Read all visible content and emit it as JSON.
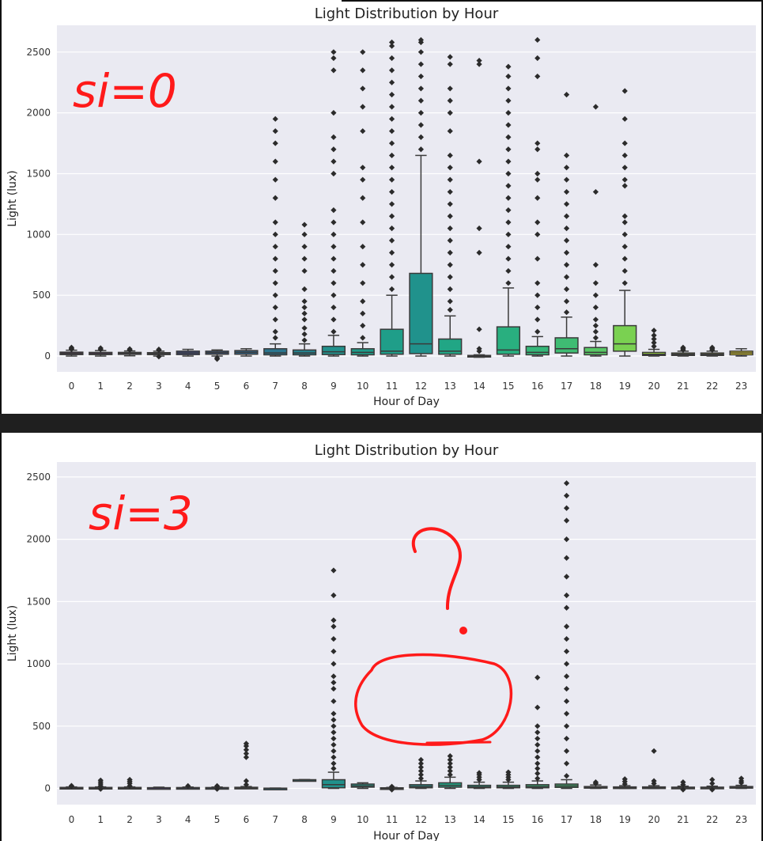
{
  "chart_data": [
    {
      "type": "box",
      "title": "Light Distribution by Hour",
      "xlabel": "Hour of Day",
      "ylabel": "Light (lux)",
      "ylim": [
        -130,
        2720
      ],
      "yticks": [
        0,
        500,
        1000,
        1500,
        2000,
        2500
      ],
      "categories": [
        "0",
        "1",
        "2",
        "3",
        "4",
        "5",
        "6",
        "7",
        "8",
        "9",
        "10",
        "11",
        "12",
        "13",
        "14",
        "15",
        "16",
        "17",
        "18",
        "19",
        "20",
        "21",
        "22",
        "23"
      ],
      "annotation": "si=0",
      "boxes": [
        {
          "hour": "0",
          "q1": 12,
          "median": 22,
          "q3": 32,
          "whisker_low": 0,
          "whisker_high": 48,
          "outliers": [
            55,
            62,
            70
          ],
          "color": "#440154"
        },
        {
          "hour": "1",
          "q1": 12,
          "median": 20,
          "q3": 30,
          "whisker_low": 0,
          "whisker_high": 45,
          "outliers": [
            55,
            65
          ],
          "color": "#46085c"
        },
        {
          "hour": "2",
          "q1": 14,
          "median": 22,
          "q3": 30,
          "whisker_low": 2,
          "whisker_high": 42,
          "outliers": [
            50,
            58
          ],
          "color": "#471365"
        },
        {
          "hour": "3",
          "q1": 12,
          "median": 20,
          "q3": 28,
          "whisker_low": 0,
          "whisker_high": 40,
          "outliers": [
            48,
            55,
            -5
          ],
          "color": "#46307e"
        },
        {
          "hour": "4",
          "q1": 12,
          "median": 25,
          "q3": 40,
          "whisker_low": 0,
          "whisker_high": 55,
          "outliers": [],
          "color": "#3e4a89"
        },
        {
          "hour": "5",
          "q1": 15,
          "median": 28,
          "q3": 40,
          "whisker_low": 0,
          "whisker_high": 50,
          "outliers": [
            -15,
            -25
          ],
          "color": "#37598c"
        },
        {
          "hour": "6",
          "q1": 15,
          "median": 30,
          "q3": 45,
          "whisker_low": 0,
          "whisker_high": 60,
          "outliers": [],
          "color": "#31688e"
        },
        {
          "hour": "7",
          "q1": 10,
          "median": 25,
          "q3": 60,
          "whisker_low": 0,
          "whisker_high": 100,
          "outliers": [
            150,
            200,
            300,
            400,
            500,
            600,
            700,
            800,
            900,
            1000,
            1100,
            1300,
            1450,
            1600,
            1750,
            1850,
            1950
          ],
          "color": "#2b758e"
        },
        {
          "hour": "8",
          "q1": 10,
          "median": 25,
          "q3": 50,
          "whisker_low": 0,
          "whisker_high": 100,
          "outliers": [
            130,
            180,
            230,
            300,
            350,
            400,
            450,
            550,
            700,
            800,
            900,
            1000,
            1080
          ],
          "color": "#26828e"
        },
        {
          "hour": "9",
          "q1": 12,
          "median": 35,
          "q3": 80,
          "whisker_low": 0,
          "whisker_high": 170,
          "outliers": [
            200,
            300,
            400,
            500,
            600,
            700,
            800,
            900,
            1000,
            1100,
            1200,
            1500,
            1600,
            1700,
            1800,
            2000,
            2350,
            2450,
            2500
          ],
          "color": "#21918c"
        },
        {
          "hour": "10",
          "q1": 10,
          "median": 30,
          "q3": 60,
          "whisker_low": 0,
          "whisker_high": 110,
          "outliers": [
            150,
            250,
            350,
            450,
            600,
            750,
            900,
            1100,
            1300,
            1450,
            1550,
            1850,
            2050,
            2200,
            2350,
            2500
          ],
          "color": "#1e9c89"
        },
        {
          "hour": "11",
          "q1": 15,
          "median": 40,
          "q3": 220,
          "whisker_low": 0,
          "whisker_high": 500,
          "outliers": [
            550,
            650,
            750,
            850,
            950,
            1050,
            1150,
            1250,
            1350,
            1450,
            1550,
            1650,
            1750,
            1850,
            1950,
            2050,
            2150,
            2250,
            2350,
            2450,
            2550,
            2580
          ],
          "color": "#1f9e89"
        },
        {
          "hour": "12",
          "q1": 20,
          "median": 100,
          "q3": 680,
          "whisker_low": 0,
          "whisker_high": 1650,
          "outliers": [
            1700,
            1800,
            1900,
            2000,
            2100,
            2200,
            2300,
            2400,
            2500,
            2580,
            2600
          ],
          "color": "#20928c"
        },
        {
          "hour": "13",
          "q1": 15,
          "median": 40,
          "q3": 140,
          "whisker_low": 0,
          "whisker_high": 330,
          "outliers": [
            380,
            450,
            550,
            650,
            750,
            850,
            950,
            1050,
            1150,
            1250,
            1350,
            1450,
            1550,
            1650,
            1850,
            2000,
            2100,
            2200,
            2400,
            2460
          ],
          "color": "#21a685"
        },
        {
          "hour": "14",
          "q1": -5,
          "median": 0,
          "q3": 5,
          "whisker_low": -10,
          "whisker_high": 10,
          "outliers": [
            40,
            60,
            220,
            850,
            1050,
            1600,
            2400,
            2430
          ],
          "color": "#1fa187"
        },
        {
          "hour": "15",
          "q1": 15,
          "median": 50,
          "q3": 240,
          "whisker_low": 0,
          "whisker_high": 560,
          "outliers": [
            600,
            700,
            800,
            900,
            1000,
            1100,
            1200,
            1300,
            1400,
            1500,
            1600,
            1700,
            1800,
            1900,
            2000,
            2100,
            2200,
            2300,
            2380
          ],
          "color": "#29af7f"
        },
        {
          "hour": "16",
          "q1": 10,
          "median": 30,
          "q3": 80,
          "whisker_low": 0,
          "whisker_high": 160,
          "outliers": [
            200,
            300,
            400,
            500,
            600,
            800,
            1000,
            1100,
            1300,
            1450,
            1500,
            1700,
            1750,
            2300,
            2450,
            2600
          ],
          "color": "#35b779"
        },
        {
          "hour": "17",
          "q1": 25,
          "median": 60,
          "q3": 150,
          "whisker_low": 0,
          "whisker_high": 320,
          "outliers": [
            360,
            450,
            550,
            650,
            750,
            850,
            950,
            1050,
            1150,
            1250,
            1350,
            1450,
            1550,
            1650,
            2150
          ],
          "color": "#3fbc73"
        },
        {
          "hour": "18",
          "q1": 10,
          "median": 30,
          "q3": 70,
          "whisker_low": 0,
          "whisker_high": 120,
          "outliers": [
            150,
            200,
            250,
            300,
            400,
            500,
            600,
            750,
            1350,
            2050
          ],
          "color": "#58c765"
        },
        {
          "hour": "19",
          "q1": 40,
          "median": 100,
          "q3": 250,
          "whisker_low": 0,
          "whisker_high": 540,
          "outliers": [
            600,
            700,
            800,
            900,
            1000,
            1100,
            1150,
            1400,
            1450,
            1550,
            1650,
            1750,
            1950,
            2180
          ],
          "color": "#7ad151"
        },
        {
          "hour": "20",
          "q1": 5,
          "median": 15,
          "q3": 30,
          "whisker_low": 0,
          "whisker_high": 55,
          "outliers": [
            80,
            110,
            140,
            170,
            210
          ],
          "color": "#9dd93b"
        },
        {
          "hour": "21",
          "q1": 5,
          "median": 15,
          "q3": 25,
          "whisker_low": 0,
          "whisker_high": 40,
          "outliers": [
            50,
            60,
            70
          ],
          "color": "#bade28"
        },
        {
          "hour": "22",
          "q1": 5,
          "median": 15,
          "q3": 25,
          "whisker_low": 0,
          "whisker_high": 40,
          "outliers": [
            50,
            60,
            70
          ],
          "color": "#d8e219"
        },
        {
          "hour": "23",
          "q1": 10,
          "median": 25,
          "q3": 40,
          "whisker_low": 0,
          "whisker_high": 60,
          "outliers": [],
          "color": "#fde725"
        }
      ]
    },
    {
      "type": "box",
      "title": "Light Distribution by Hour",
      "xlabel": "Hour of Day",
      "ylabel": "Light (lux)",
      "ylim": [
        -130,
        2620
      ],
      "yticks": [
        0,
        500,
        1000,
        1500,
        2000,
        2500
      ],
      "categories": [
        "0",
        "1",
        "2",
        "3",
        "4",
        "5",
        "6",
        "7",
        "8",
        "9",
        "10",
        "11",
        "12",
        "13",
        "14",
        "15",
        "16",
        "17",
        "18",
        "19",
        "20",
        "21",
        "22",
        "23"
      ],
      "annotation": "si=3",
      "annotation_question": "?",
      "boxes": [
        {
          "hour": "0",
          "q1": 2,
          "median": 5,
          "q3": 8,
          "whisker_low": 0,
          "whisker_high": 12,
          "outliers": [
            18,
            22
          ],
          "color": "#440154"
        },
        {
          "hour": "1",
          "q1": 2,
          "median": 5,
          "q3": 8,
          "whisker_low": 0,
          "whisker_high": 12,
          "outliers": [
            20,
            35,
            50,
            65,
            -5
          ],
          "color": "#46085c"
        },
        {
          "hour": "2",
          "q1": 2,
          "median": 5,
          "q3": 8,
          "whisker_low": 0,
          "whisker_high": 12,
          "outliers": [
            20,
            40,
            55,
            70
          ],
          "color": "#471365"
        },
        {
          "hour": "3",
          "q1": 2,
          "median": 4,
          "q3": 6,
          "whisker_low": 0,
          "whisker_high": 10,
          "outliers": [],
          "color": "#46307e"
        },
        {
          "hour": "4",
          "q1": 2,
          "median": 4,
          "q3": 7,
          "whisker_low": 0,
          "whisker_high": 11,
          "outliers": [
            20
          ],
          "color": "#3e4a89"
        },
        {
          "hour": "5",
          "q1": 2,
          "median": 4,
          "q3": 7,
          "whisker_low": 0,
          "whisker_high": 11,
          "outliers": [
            20,
            -5
          ],
          "color": "#37598c"
        },
        {
          "hour": "6",
          "q1": 2,
          "median": 5,
          "q3": 9,
          "whisker_low": 0,
          "whisker_high": 15,
          "outliers": [
            30,
            60,
            250,
            280,
            310,
            340,
            360
          ],
          "color": "#31688e"
        },
        {
          "hour": "7",
          "q1": 0,
          "median": 1,
          "q3": 2,
          "whisker_low": 0,
          "whisker_high": 3,
          "outliers": [],
          "color": "#2b758e"
        },
        {
          "hour": "8",
          "q1": 66,
          "median": 68,
          "q3": 70,
          "whisker_low": 65,
          "whisker_high": 71,
          "outliers": [],
          "color": "#26828e"
        },
        {
          "hour": "9",
          "q1": 5,
          "median": 30,
          "q3": 70,
          "whisker_low": 0,
          "whisker_high": 130,
          "outliers": [
            160,
            200,
            250,
            300,
            350,
            400,
            450,
            500,
            550,
            600,
            700,
            800,
            850,
            900,
            1000,
            1100,
            1200,
            1300,
            1350,
            1550,
            1750
          ],
          "color": "#21918c"
        },
        {
          "hour": "10",
          "q1": 10,
          "median": 20,
          "q3": 35,
          "whisker_low": 0,
          "whisker_high": 45,
          "outliers": [],
          "color": "#1e9c89"
        },
        {
          "hour": "11",
          "q1": 0,
          "median": 2,
          "q3": 5,
          "whisker_low": 0,
          "whisker_high": 8,
          "outliers": [
            -10,
            15
          ],
          "color": "#1f9e89"
        },
        {
          "hour": "12",
          "q1": 5,
          "median": 15,
          "q3": 30,
          "whisker_low": 0,
          "whisker_high": 60,
          "outliers": [
            80,
            110,
            140,
            170,
            200,
            230
          ],
          "color": "#20928c"
        },
        {
          "hour": "13",
          "q1": 10,
          "median": 25,
          "q3": 45,
          "whisker_low": 0,
          "whisker_high": 90,
          "outliers": [
            110,
            140,
            170,
            200,
            230,
            260
          ],
          "color": "#21a685"
        },
        {
          "hour": "14",
          "q1": 5,
          "median": 12,
          "q3": 25,
          "whisker_low": 0,
          "whisker_high": 50,
          "outliers": [
            70,
            90,
            110,
            125
          ],
          "color": "#1fa187"
        },
        {
          "hour": "15",
          "q1": 5,
          "median": 12,
          "q3": 25,
          "whisker_low": 0,
          "whisker_high": 50,
          "outliers": [
            70,
            90,
            110,
            130
          ],
          "color": "#29af7f"
        },
        {
          "hour": "16",
          "q1": 5,
          "median": 15,
          "q3": 30,
          "whisker_low": 0,
          "whisker_high": 60,
          "outliers": [
            80,
            120,
            160,
            200,
            250,
            300,
            350,
            400,
            450,
            500,
            650,
            890
          ],
          "color": "#35b779"
        },
        {
          "hour": "17",
          "q1": 8,
          "median": 20,
          "q3": 35,
          "whisker_low": 0,
          "whisker_high": 70,
          "outliers": [
            100,
            200,
            300,
            400,
            500,
            600,
            700,
            800,
            900,
            1000,
            1100,
            1200,
            1300,
            1450,
            1550,
            1700,
            1850,
            2000,
            2150,
            2250,
            2350,
            2450
          ],
          "color": "#3fbc73"
        },
        {
          "hour": "18",
          "q1": 3,
          "median": 8,
          "q3": 15,
          "whisker_low": 0,
          "whisker_high": 28,
          "outliers": [
            40,
            50
          ],
          "color": "#58c765"
        },
        {
          "hour": "19",
          "q1": 2,
          "median": 6,
          "q3": 12,
          "whisker_low": 0,
          "whisker_high": 22,
          "outliers": [
            35,
            55,
            75
          ],
          "color": "#7ad151"
        },
        {
          "hour": "20",
          "q1": 2,
          "median": 6,
          "q3": 12,
          "whisker_low": 0,
          "whisker_high": 22,
          "outliers": [
            40,
            60,
            300
          ],
          "color": "#9dd93b"
        },
        {
          "hour": "21",
          "q1": 2,
          "median": 5,
          "q3": 10,
          "whisker_low": 0,
          "whisker_high": 18,
          "outliers": [
            30,
            50,
            -10
          ],
          "color": "#bade28"
        },
        {
          "hour": "22",
          "q1": 2,
          "median": 5,
          "q3": 10,
          "whisker_low": 0,
          "whisker_high": 18,
          "outliers": [
            40,
            70,
            -10
          ],
          "color": "#d8e219"
        },
        {
          "hour": "23",
          "q1": 3,
          "median": 8,
          "q3": 15,
          "whisker_low": 0,
          "whisker_high": 25,
          "outliers": [
            45,
            60,
            80
          ],
          "color": "#fde725"
        }
      ]
    }
  ]
}
